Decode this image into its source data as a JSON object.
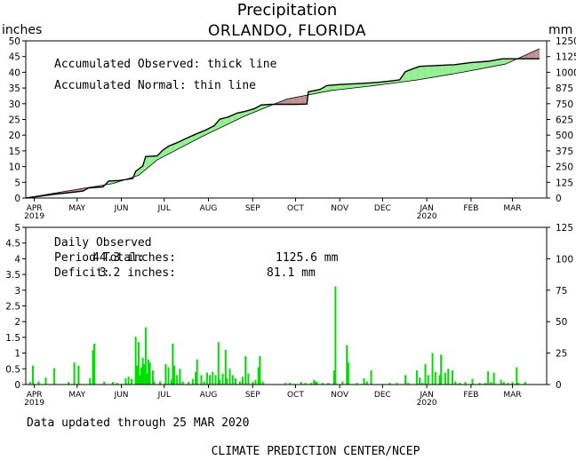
{
  "header": {
    "title": "Precipitation",
    "subtitle": "ORLANDO, FLORIDA",
    "unit_left": "inches",
    "unit_right": "mm"
  },
  "top_panel": {
    "legend_observed": "Accumulated Observed: thick line",
    "legend_normal": "Accumulated Normal: thin line"
  },
  "bottom_panel": {
    "legend_title": "Daily Observed",
    "period_total_label": "Period Total:",
    "period_total_in": "44.3 inches:",
    "period_total_mm": "1125.6 mm",
    "deficit_label": "Deficit:",
    "deficit_in": "3.2 inches:",
    "deficit_mm": "81.1 mm"
  },
  "footer": {
    "updated": "Data updated through 25 MAR 2020",
    "credit": "CLIMATE PREDICTION CENTER/NCEP"
  },
  "colors": {
    "surplus": "#90ee90",
    "deficit": "#bc8f8f",
    "bars": "#00dd00"
  },
  "chart_data": [
    {
      "type": "area",
      "x_start": "2019-03-26",
      "x_end": "2020-03-25",
      "x_ticks": [
        "APR",
        "MAY",
        "JUN",
        "JUL",
        "AUG",
        "SEP",
        "OCT",
        "NOV",
        "DEC",
        "JAN",
        "FEB",
        "MAR"
      ],
      "x_tick_days": [
        6,
        36,
        67,
        97,
        128,
        159,
        189,
        220,
        250,
        281,
        312,
        341
      ],
      "x_year_labels": [
        {
          "label": "2019",
          "day": 6
        },
        {
          "label": "2020",
          "day": 281
        }
      ],
      "ylim": [
        0,
        50
      ],
      "yticks": [
        0,
        5,
        10,
        15,
        20,
        25,
        30,
        35,
        40,
        45,
        50
      ],
      "y2lim": [
        0,
        1250
      ],
      "y2ticks": [
        0,
        125,
        250,
        375,
        500,
        625,
        750,
        875,
        1000,
        1125,
        1250
      ],
      "series": [
        {
          "name": "Accumulated Observed",
          "points": [
            [
              0,
              0
            ],
            [
              20,
              1.2
            ],
            [
              40,
              2.2
            ],
            [
              44,
              3.2
            ],
            [
              54,
              3.5
            ],
            [
              58,
              5.4
            ],
            [
              66,
              5.6
            ],
            [
              75,
              6.2
            ],
            [
              77,
              8.5
            ],
            [
              82,
              10.2
            ],
            [
              84,
              13.2
            ],
            [
              92,
              13.4
            ],
            [
              96,
              15.2
            ],
            [
              100,
              16.5
            ],
            [
              106,
              17.6
            ],
            [
              112,
              18.9
            ],
            [
              120,
              20.5
            ],
            [
              126,
              21.6
            ],
            [
              132,
              23.0
            ],
            [
              136,
              25.1
            ],
            [
              142,
              25.8
            ],
            [
              148,
              27.0
            ],
            [
              154,
              27.6
            ],
            [
              160,
              28.4
            ],
            [
              165,
              29.6
            ],
            [
              172,
              29.8
            ],
            [
              180,
              29.8
            ],
            [
              190,
              29.8
            ],
            [
              197,
              29.9
            ],
            [
              198,
              33.8
            ],
            [
              206,
              34.5
            ],
            [
              211,
              35.8
            ],
            [
              220,
              36.1
            ],
            [
              232,
              36.4
            ],
            [
              240,
              36.6
            ],
            [
              247,
              36.8
            ],
            [
              255,
              37.2
            ],
            [
              262,
              37.6
            ],
            [
              266,
              40.2
            ],
            [
              270,
              40.9
            ],
            [
              276,
              41.9
            ],
            [
              286,
              42.1
            ],
            [
              300,
              42.4
            ],
            [
              312,
              43.1
            ],
            [
              324,
              43.5
            ],
            [
              334,
              44.3
            ],
            [
              360,
              44.3
            ]
          ]
        },
        {
          "name": "Accumulated Normal",
          "points": [
            [
              0,
              0
            ],
            [
              31,
              2.4
            ],
            [
              61,
              4.6
            ],
            [
              79,
              7.2
            ],
            [
              92,
              12.1
            ],
            [
              122,
              19.2
            ],
            [
              153,
              26.0
            ],
            [
              183,
              31.5
            ],
            [
              214,
              34.2
            ],
            [
              245,
              35.8
            ],
            [
              275,
              37.6
            ],
            [
              306,
              40.0
            ],
            [
              336,
              42.6
            ],
            [
              360,
              47.5
            ]
          ]
        }
      ]
    },
    {
      "type": "bar",
      "ylim": [
        0,
        5
      ],
      "yticks": [
        0,
        0.5,
        1,
        1.5,
        2,
        2.5,
        3,
        3.5,
        4,
        4.5,
        5
      ],
      "y2lim": [
        0,
        125
      ],
      "y2ticks": [
        0,
        25,
        50,
        75,
        100,
        125
      ],
      "series": [
        {
          "name": "Daily Observed",
          "points": [
            [
              3,
              0.08
            ],
            [
              5,
              0.6
            ],
            [
              9,
              0.1
            ],
            [
              14,
              0.22
            ],
            [
              20,
              0.52
            ],
            [
              30,
              0.08
            ],
            [
              34,
              0.7
            ],
            [
              37,
              0.6
            ],
            [
              45,
              0.2
            ],
            [
              47,
              1.1
            ],
            [
              48,
              1.3
            ],
            [
              55,
              0.1
            ],
            [
              61,
              0.08
            ],
            [
              64,
              0.05
            ],
            [
              70,
              0.2
            ],
            [
              72,
              0.25
            ],
            [
              74,
              0.18
            ],
            [
              77,
              1.52
            ],
            [
              78,
              0.6
            ],
            [
              79,
              1.35
            ],
            [
              80,
              0.3
            ],
            [
              81,
              0.55
            ],
            [
              82,
              0.85
            ],
            [
              83,
              0.65
            ],
            [
              84,
              1.82
            ],
            [
              85,
              0.35
            ],
            [
              86,
              0.8
            ],
            [
              87,
              0.7
            ],
            [
              89,
              0.45
            ],
            [
              90,
              0.1
            ],
            [
              94,
              0.1
            ],
            [
              98,
              0.65
            ],
            [
              100,
              0.55
            ],
            [
              102,
              0.15
            ],
            [
              103,
              1.3
            ],
            [
              104,
              0.6
            ],
            [
              106,
              0.3
            ],
            [
              108,
              0.5
            ],
            [
              110,
              0.1
            ],
            [
              114,
              0.08
            ],
            [
              117,
              0.18
            ],
            [
              119,
              0.4
            ],
            [
              120,
              0.8
            ],
            [
              123,
              0.3
            ],
            [
              125,
              0.1
            ],
            [
              127,
              0.38
            ],
            [
              129,
              0.3
            ],
            [
              131,
              0.4
            ],
            [
              133,
              0.3
            ],
            [
              135,
              1.35
            ],
            [
              136,
              0.15
            ],
            [
              138,
              0.35
            ],
            [
              140,
              1.1
            ],
            [
              141,
              0.2
            ],
            [
              143,
              0.5
            ],
            [
              145,
              0.3
            ],
            [
              147,
              0.2
            ],
            [
              150,
              0.1
            ],
            [
              152,
              0.25
            ],
            [
              154,
              0.9
            ],
            [
              156,
              0.35
            ],
            [
              159,
              0.08
            ],
            [
              161,
              0.15
            ],
            [
              163,
              0.55
            ],
            [
              164,
              0.9
            ],
            [
              166,
              0.1
            ],
            [
              182,
              0.05
            ],
            [
              185,
              0.05
            ],
            [
              193,
              0.08
            ],
            [
              196,
              0.05
            ],
            [
              200,
              0.05
            ],
            [
              202,
              0.15
            ],
            [
              203,
              0.1
            ],
            [
              204,
              0.08
            ],
            [
              208,
              0.05
            ],
            [
              212,
              0.05
            ],
            [
              216,
              0.45
            ],
            [
              217,
              3.12
            ],
            [
              222,
              0.1
            ],
            [
              225,
              1.25
            ],
            [
              226,
              0.7
            ],
            [
              232,
              0.05
            ],
            [
              237,
              0.2
            ],
            [
              239,
              0.1
            ],
            [
              242,
              0.45
            ],
            [
              255,
              0.05
            ],
            [
              260,
              0.05
            ],
            [
              266,
              0.3
            ],
            [
              268,
              0.05
            ],
            [
              274,
              0.45
            ],
            [
              276,
              0.22
            ],
            [
              278,
              0.05
            ],
            [
              280,
              0.65
            ],
            [
              282,
              0.3
            ],
            [
              285,
              1.0
            ],
            [
              287,
              0.4
            ],
            [
              290,
              0.3
            ],
            [
              291,
              0.95
            ],
            [
              294,
              0.38
            ],
            [
              296,
              0.5
            ],
            [
              299,
              0.45
            ],
            [
              301,
              0.1
            ],
            [
              304,
              0.05
            ],
            [
              308,
              0.08
            ],
            [
              313,
              0.18
            ],
            [
              318,
              0.05
            ],
            [
              322,
              0.05
            ],
            [
              324,
              0.42
            ],
            [
              326,
              0.08
            ],
            [
              328,
              0.38
            ],
            [
              333,
              0.15
            ],
            [
              335,
              0.08
            ],
            [
              338,
              0.05
            ],
            [
              341,
              0.08
            ],
            [
              344,
              0.55
            ],
            [
              345,
              0.05
            ],
            [
              350,
              0.08
            ]
          ]
        }
      ]
    }
  ]
}
